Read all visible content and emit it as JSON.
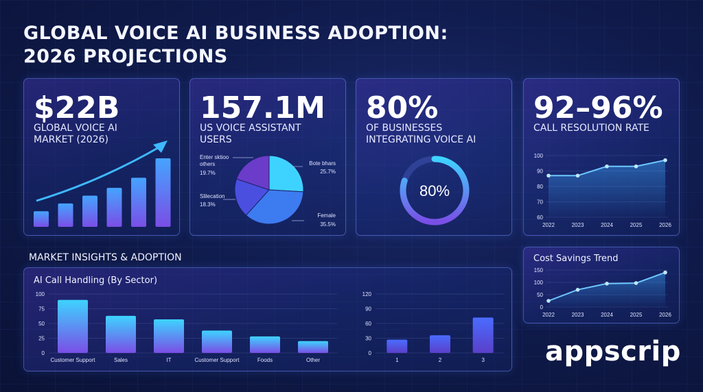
{
  "title_line1": "GLOBAL VOICE AI BUSINESS ADOPTION:",
  "title_line2": "2026 PROJECTIONS",
  "kpis": [
    {
      "value": "$22B",
      "label_line1": "GLOBAL VOICE AI",
      "label_line2": "MARKET (2026)"
    },
    {
      "value": "157.1M",
      "label_line1": "US VOICE ASSISTANT",
      "label_line2": "USERS"
    },
    {
      "value": "80%",
      "label_line1": "OF BUSINESSES",
      "label_line2": "INTEGRATING VOICE AI"
    },
    {
      "value": "92–96%",
      "label_line1": "CALL RESOLUTION RATE",
      "label_line2": ""
    }
  ],
  "section_title": "MARKET INSIGHTS & ADOPTION",
  "colors": {
    "accent_cyan": "#38d4ff",
    "accent_blue": "#4a6cff",
    "accent_purple": "#7b4fe0",
    "line_color": "#6ec8ff"
  },
  "chart_data": [
    {
      "id": "market-growth",
      "type": "bar",
      "title": "",
      "values": [
        2,
        3,
        4,
        5,
        6.3,
        8.8
      ],
      "trend_arrow": true
    },
    {
      "id": "voice-users-pie",
      "type": "pie",
      "slices": [
        {
          "label": "Bote bhars",
          "value": 25.7,
          "pct": "25.7%",
          "color": "#3ed3ff"
        },
        {
          "label": "Female",
          "value": 35.5,
          "pct": "35.5%",
          "color": "#3d7bf0"
        },
        {
          "label": "Slilecation",
          "value": 18.3,
          "pct": "18.3%",
          "color": "#4b4fe0"
        },
        {
          "label": "Enter sktioo others",
          "value": 19.7,
          "pct": "19.7%",
          "color": "#6a3cc9"
        }
      ]
    },
    {
      "id": "integration-donut",
      "type": "pie",
      "center_label": "80%",
      "value": 80
    },
    {
      "id": "resolution-rate",
      "type": "line",
      "x": [
        "2022",
        "2023",
        "2024",
        "2025",
        "2026"
      ],
      "values": [
        87,
        87,
        93,
        93,
        97
      ],
      "ylim": [
        60,
        100
      ],
      "yticks": [
        "60",
        "70",
        "80",
        "90",
        "100"
      ]
    },
    {
      "id": "cost-savings",
      "type": "line",
      "title": "Cost Savings Trend",
      "x": [
        "2022",
        "2023",
        "2024",
        "2025",
        "2026"
      ],
      "values": [
        25,
        70,
        95,
        97,
        140
      ],
      "ylim": [
        0,
        150
      ],
      "yticks": [
        "0",
        "50",
        "100",
        "150"
      ]
    },
    {
      "id": "sector-handling",
      "type": "bar",
      "title": "AI Call Handling (By Sector)",
      "categories": [
        "Customer Support",
        "Sales",
        "IT",
        "Customer Support",
        "Foods",
        "Other"
      ],
      "values": [
        90,
        63,
        57,
        38,
        28,
        20
      ],
      "ylim": [
        0,
        100
      ],
      "yticks": [
        "0",
        "25",
        "50",
        "75",
        "100"
      ]
    },
    {
      "id": "small-bars",
      "type": "bar",
      "categories": [
        "1",
        "2",
        "3"
      ],
      "values": [
        27,
        36,
        72
      ],
      "ylim": [
        0,
        120
      ],
      "yticks": [
        "0",
        "30",
        "60",
        "90",
        "120"
      ]
    }
  ],
  "logo_text": "appscrip"
}
